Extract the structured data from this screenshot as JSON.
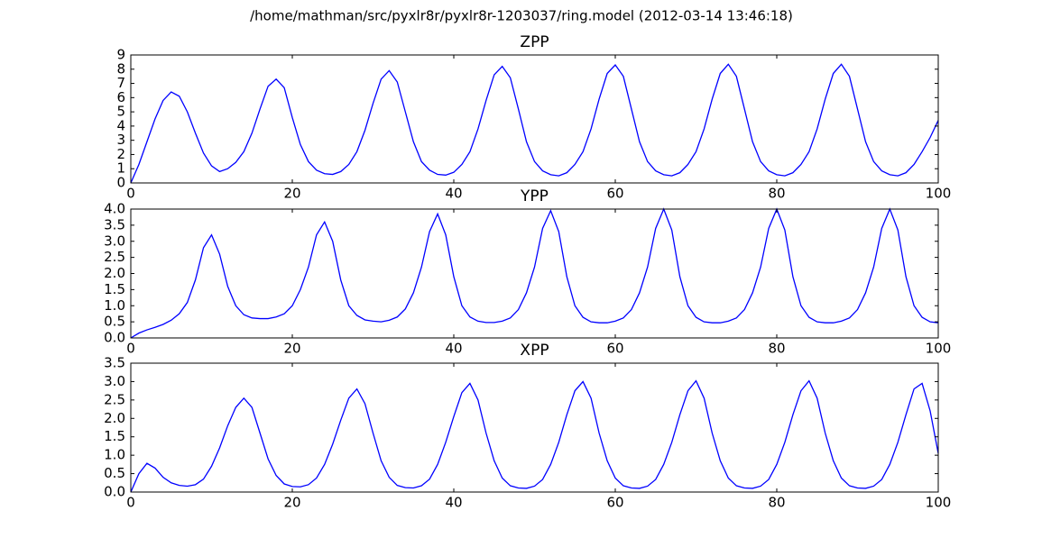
{
  "title": "/home/mathman/src/pyxlr8r/pyxlr8r-1203037/ring.model (2012-03-14 13:46:18)",
  "chart_data": [
    {
      "type": "line",
      "title": "ZPP",
      "color": "#0000ff",
      "x": [
        0,
        1,
        2,
        3,
        4,
        5,
        6,
        7,
        8,
        9,
        10,
        11,
        12,
        13,
        14,
        15,
        16,
        17,
        18,
        19,
        20,
        21,
        22,
        23,
        24,
        25,
        26,
        27,
        28,
        29,
        30,
        31,
        32,
        33,
        34,
        35,
        36,
        37,
        38,
        39,
        40,
        41,
        42,
        43,
        44,
        45,
        46,
        47,
        48,
        49,
        50,
        51,
        52,
        53,
        54,
        55,
        56,
        57,
        58,
        59,
        60,
        61,
        62,
        63,
        64,
        65,
        66,
        67,
        68,
        69,
        70,
        71,
        72,
        73,
        74,
        75,
        76,
        77,
        78,
        79,
        80,
        81,
        82,
        83,
        84,
        85,
        86,
        87,
        88,
        89,
        90,
        91,
        92,
        93,
        94,
        95,
        96,
        97,
        98,
        99,
        100
      ],
      "values": [
        0,
        1.3,
        2.9,
        4.5,
        5.8,
        6.4,
        6.1,
        5.0,
        3.5,
        2.1,
        1.2,
        0.8,
        1.0,
        1.45,
        2.2,
        3.5,
        5.2,
        6.8,
        7.3,
        6.7,
        4.6,
        2.7,
        1.5,
        0.9,
        0.65,
        0.6,
        0.8,
        1.3,
        2.2,
        3.7,
        5.6,
        7.3,
        7.9,
        7.1,
        5.0,
        2.9,
        1.5,
        0.9,
        0.6,
        0.55,
        0.75,
        1.3,
        2.2,
        3.8,
        5.8,
        7.6,
        8.2,
        7.4,
        5.2,
        2.9,
        1.5,
        0.85,
        0.58,
        0.5,
        0.72,
        1.3,
        2.2,
        3.8,
        5.9,
        7.7,
        8.3,
        7.5,
        5.2,
        2.9,
        1.5,
        0.85,
        0.58,
        0.5,
        0.72,
        1.3,
        2.2,
        3.8,
        5.9,
        7.7,
        8.35,
        7.5,
        5.2,
        2.9,
        1.5,
        0.85,
        0.58,
        0.5,
        0.72,
        1.3,
        2.2,
        3.8,
        5.9,
        7.7,
        8.35,
        7.5,
        5.2,
        2.9,
        1.5,
        0.85,
        0.58,
        0.5,
        0.72,
        1.3,
        2.2,
        3.2,
        4.4
      ],
      "xlim": [
        0,
        100
      ],
      "xticks": [
        0,
        20,
        40,
        60,
        80,
        100
      ],
      "ylim": [
        0,
        9
      ],
      "yticks": [
        0,
        1,
        2,
        3,
        4,
        5,
        6,
        7,
        8,
        9
      ]
    },
    {
      "type": "line",
      "title": "YPP",
      "color": "#0000ff",
      "x": [
        0,
        1,
        2,
        3,
        4,
        5,
        6,
        7,
        8,
        9,
        10,
        11,
        12,
        13,
        14,
        15,
        16,
        17,
        18,
        19,
        20,
        21,
        22,
        23,
        24,
        25,
        26,
        27,
        28,
        29,
        30,
        31,
        32,
        33,
        34,
        35,
        36,
        37,
        38,
        39,
        40,
        41,
        42,
        43,
        44,
        45,
        46,
        47,
        48,
        49,
        50,
        51,
        52,
        53,
        54,
        55,
        56,
        57,
        58,
        59,
        60,
        61,
        62,
        63,
        64,
        65,
        66,
        67,
        68,
        69,
        70,
        71,
        72,
        73,
        74,
        75,
        76,
        77,
        78,
        79,
        80,
        81,
        82,
        83,
        84,
        85,
        86,
        87,
        88,
        89,
        90,
        91,
        92,
        93,
        94,
        95,
        96,
        97,
        98,
        99,
        100
      ],
      "values": [
        0,
        0.15,
        0.25,
        0.33,
        0.42,
        0.55,
        0.75,
        1.1,
        1.8,
        2.8,
        3.2,
        2.6,
        1.6,
        1.0,
        0.72,
        0.62,
        0.6,
        0.6,
        0.65,
        0.75,
        1.0,
        1.5,
        2.2,
        3.2,
        3.6,
        3.0,
        1.8,
        1.0,
        0.7,
        0.56,
        0.52,
        0.5,
        0.55,
        0.65,
        0.9,
        1.4,
        2.2,
        3.3,
        3.85,
        3.2,
        1.9,
        1.0,
        0.65,
        0.52,
        0.48,
        0.48,
        0.52,
        0.62,
        0.88,
        1.4,
        2.2,
        3.4,
        3.95,
        3.3,
        1.9,
        1.0,
        0.64,
        0.5,
        0.47,
        0.47,
        0.52,
        0.62,
        0.88,
        1.4,
        2.2,
        3.4,
        4.0,
        3.35,
        1.9,
        1.0,
        0.64,
        0.5,
        0.47,
        0.47,
        0.52,
        0.62,
        0.88,
        1.4,
        2.2,
        3.4,
        4.0,
        3.35,
        1.9,
        1.0,
        0.64,
        0.5,
        0.47,
        0.47,
        0.52,
        0.62,
        0.88,
        1.4,
        2.2,
        3.4,
        4.0,
        3.35,
        1.9,
        1.0,
        0.64,
        0.5,
        0.47
      ],
      "xlim": [
        0,
        100
      ],
      "xticks": [
        0,
        20,
        40,
        60,
        80,
        100
      ],
      "ylim": [
        0,
        4
      ],
      "yticks": [
        {
          "value": 0,
          "label": "0.0"
        },
        0.5,
        {
          "value": 1,
          "label": "1.0"
        },
        1.5,
        {
          "value": 2,
          "label": "2.0"
        },
        2.5,
        {
          "value": 3,
          "label": "3.0"
        },
        3.5,
        {
          "value": 4,
          "label": "4.0"
        }
      ]
    },
    {
      "type": "line",
      "title": "XPP",
      "color": "#0000ff",
      "x": [
        0,
        1,
        2,
        3,
        4,
        5,
        6,
        7,
        8,
        9,
        10,
        11,
        12,
        13,
        14,
        15,
        16,
        17,
        18,
        19,
        20,
        21,
        22,
        23,
        24,
        25,
        26,
        27,
        28,
        29,
        30,
        31,
        32,
        33,
        34,
        35,
        36,
        37,
        38,
        39,
        40,
        41,
        42,
        43,
        44,
        45,
        46,
        47,
        48,
        49,
        50,
        51,
        52,
        53,
        54,
        55,
        56,
        57,
        58,
        59,
        60,
        61,
        62,
        63,
        64,
        65,
        66,
        67,
        68,
        69,
        70,
        71,
        72,
        73,
        74,
        75,
        76,
        77,
        78,
        79,
        80,
        81,
        82,
        83,
        84,
        85,
        86,
        87,
        88,
        89,
        90,
        91,
        92,
        93,
        94,
        95,
        96,
        97,
        98,
        99,
        100
      ],
      "values": [
        0,
        0.5,
        0.78,
        0.65,
        0.4,
        0.25,
        0.18,
        0.16,
        0.2,
        0.35,
        0.7,
        1.2,
        1.8,
        2.3,
        2.55,
        2.3,
        1.6,
        0.9,
        0.45,
        0.22,
        0.15,
        0.14,
        0.2,
        0.38,
        0.75,
        1.3,
        1.95,
        2.55,
        2.8,
        2.4,
        1.6,
        0.85,
        0.4,
        0.18,
        0.12,
        0.11,
        0.17,
        0.35,
        0.75,
        1.35,
        2.05,
        2.7,
        2.95,
        2.5,
        1.6,
        0.85,
        0.38,
        0.17,
        0.11,
        0.1,
        0.16,
        0.34,
        0.75,
        1.35,
        2.1,
        2.75,
        3.0,
        2.55,
        1.6,
        0.85,
        0.38,
        0.17,
        0.11,
        0.1,
        0.16,
        0.34,
        0.75,
        1.35,
        2.1,
        2.75,
        3.02,
        2.55,
        1.6,
        0.85,
        0.38,
        0.17,
        0.11,
        0.1,
        0.16,
        0.34,
        0.75,
        1.35,
        2.1,
        2.75,
        3.02,
        2.55,
        1.6,
        0.85,
        0.38,
        0.17,
        0.11,
        0.1,
        0.16,
        0.34,
        0.75,
        1.35,
        2.1,
        2.8,
        2.95,
        2.2,
        1.05
      ],
      "xlim": [
        0,
        100
      ],
      "xticks": [
        0,
        20,
        40,
        60,
        80,
        100
      ],
      "ylim": [
        0,
        3.5
      ],
      "yticks": [
        {
          "value": 0,
          "label": "0.0"
        },
        0.5,
        {
          "value": 1,
          "label": "1.0"
        },
        1.5,
        {
          "value": 2,
          "label": "2.0"
        },
        2.5,
        {
          "value": 3,
          "label": "3.0"
        },
        3.5
      ]
    }
  ]
}
